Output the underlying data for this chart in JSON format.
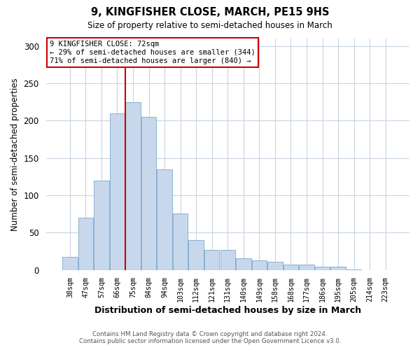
{
  "title": "9, KINGFISHER CLOSE, MARCH, PE15 9HS",
  "subtitle": "Size of property relative to semi-detached houses in March",
  "xlabel": "Distribution of semi-detached houses by size in March",
  "ylabel": "Number of semi-detached properties",
  "bar_labels": [
    "38sqm",
    "47sqm",
    "57sqm",
    "66sqm",
    "75sqm",
    "84sqm",
    "94sqm",
    "103sqm",
    "112sqm",
    "121sqm",
    "131sqm",
    "140sqm",
    "149sqm",
    "158sqm",
    "168sqm",
    "177sqm",
    "186sqm",
    "195sqm",
    "205sqm",
    "214sqm",
    "223sqm"
  ],
  "bar_values": [
    18,
    70,
    120,
    210,
    225,
    205,
    135,
    76,
    40,
    27,
    27,
    16,
    13,
    11,
    7,
    7,
    4,
    4,
    1,
    0,
    0
  ],
  "bar_color": "#c8d8ec",
  "bar_edge_color": "#8ab0d0",
  "vline_color": "#cc0000",
  "vline_bin_index": 4,
  "ylim": [
    0,
    310
  ],
  "yticks": [
    0,
    50,
    100,
    150,
    200,
    250,
    300
  ],
  "annotation_title": "9 KINGFISHER CLOSE: 72sqm",
  "annotation_line1": "← 29% of semi-detached houses are smaller (344)",
  "annotation_line2": "71% of semi-detached houses are larger (840) →",
  "footer_line1": "Contains HM Land Registry data © Crown copyright and database right 2024.",
  "footer_line2": "Contains public sector information licensed under the Open Government Licence v3.0.",
  "background_color": "#ffffff",
  "grid_color": "#c8d4e0"
}
